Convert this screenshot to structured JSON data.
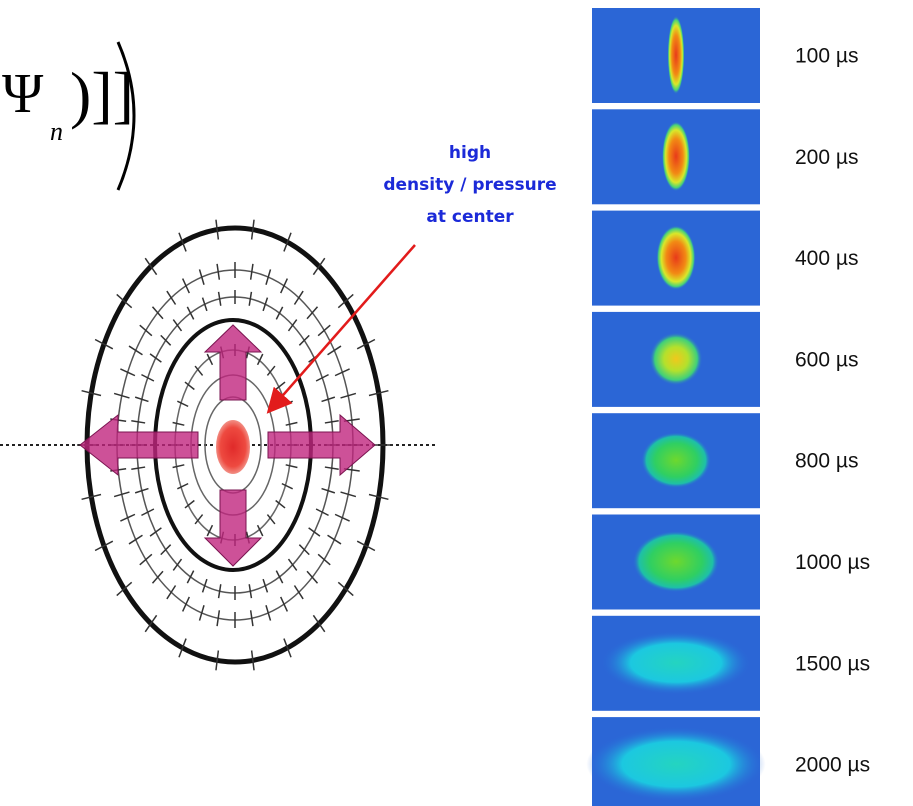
{
  "formula": {
    "symbol": "Ψ",
    "subscript": "n",
    "brackets": ")]]"
  },
  "annotation": {
    "lines": [
      "high",
      "density / pressure",
      "at center"
    ]
  },
  "panels": [
    "100 µs",
    "200 µs",
    "400 µs",
    "600 µs",
    "800 µs",
    "1000 µs",
    "1500 µs",
    "2000 µs"
  ]
}
